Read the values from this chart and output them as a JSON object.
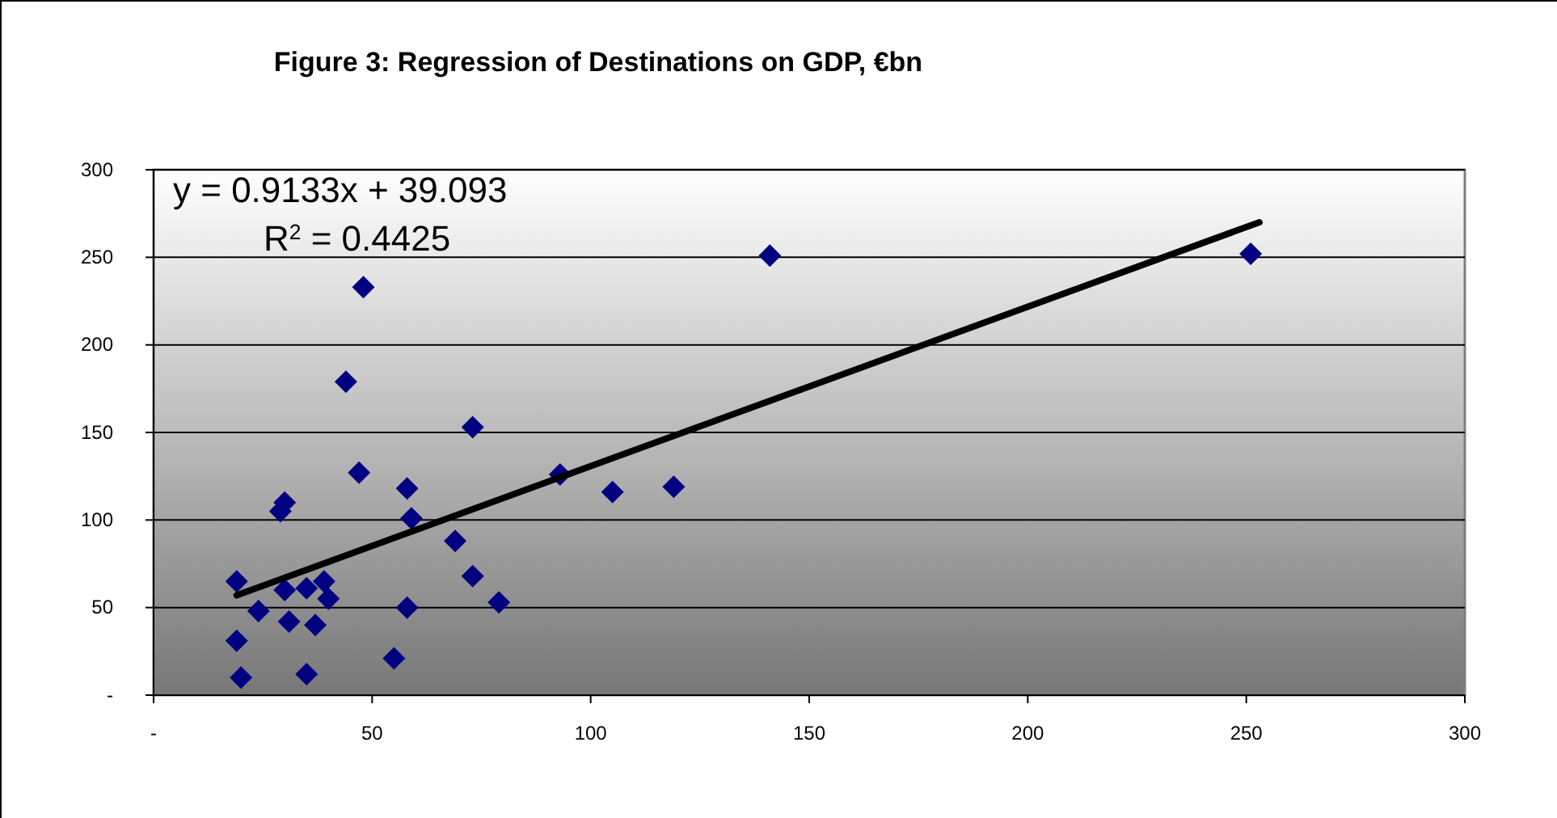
{
  "chart_data": {
    "type": "scatter",
    "title": "Figure 3: Regression of Destinations on GDP, €bn",
    "annotations": [
      "y = 0.9133x + 39.093",
      "R$^{2}$ = 0.4425"
    ],
    "xlim": [
      0,
      300
    ],
    "xticks": [
      {
        "value": 0,
        "label": "-"
      },
      50,
      100,
      150,
      200,
      250,
      300
    ],
    "ylim": [
      0,
      300
    ],
    "yticks": [
      {
        "value": 0,
        "label": "-"
      },
      50,
      100,
      150,
      200,
      250,
      300
    ],
    "grid": "y",
    "series": [
      {
        "type": "scatter",
        "color": "#000080",
        "marker": "diamond",
        "x": [
          48,
          44,
          73,
          47,
          58,
          93,
          105,
          119,
          30,
          29,
          59,
          69,
          73,
          79,
          19,
          30,
          35,
          39,
          40,
          24,
          31,
          37,
          58,
          19,
          20,
          35,
          55,
          141,
          251
        ],
        "values": [
          233,
          179,
          153,
          127,
          118,
          126,
          116,
          119,
          110,
          105,
          101,
          88,
          68,
          53,
          65,
          60,
          61,
          65,
          55,
          48,
          42,
          40,
          50,
          31,
          10,
          12,
          21,
          251,
          252
        ]
      },
      {
        "type": "line",
        "color": "#000000",
        "marker": "none",
        "line_style": "solid",
        "x": [
          19,
          253
        ],
        "values": [
          57,
          270
        ]
      }
    ]
  }
}
